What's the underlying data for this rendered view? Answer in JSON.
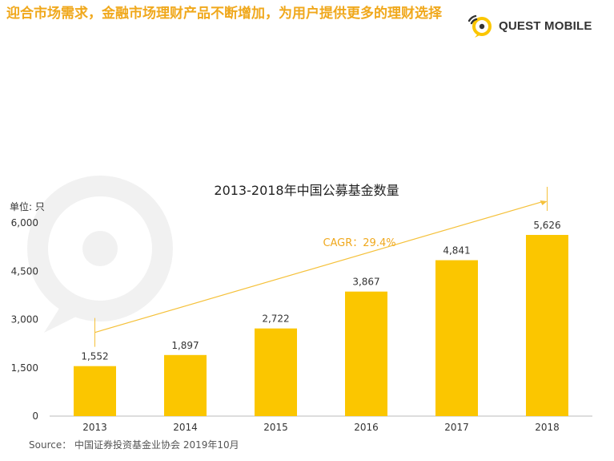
{
  "header": {
    "headline": "迎合市场需求，金融市场理财产品不断增加，为用户提供更多的理财选择",
    "logo_text": "QUEST MOBILE"
  },
  "source": "Source：  中国证券投资基金业协会 2019年10月",
  "colors": {
    "bar": "#fbc600",
    "headline": "#f0a81c",
    "cagr_line": "#f5c13a",
    "text": "#333333"
  },
  "chart_data": {
    "type": "bar",
    "title": "2013-2018年中国公募基金数量",
    "ylabel": "单位: 只",
    "xlabel": "",
    "categories": [
      "2013",
      "2014",
      "2015",
      "2016",
      "2017",
      "2018"
    ],
    "values": [
      1552,
      1897,
      2722,
      3867,
      4841,
      5626
    ],
    "value_labels": [
      "1,552",
      "1,897",
      "2,722",
      "3,867",
      "4,841",
      "5,626"
    ],
    "yticks": [
      0,
      1500,
      3000,
      4500,
      6000
    ],
    "ytick_labels": [
      "0",
      "1,500",
      "3,000",
      "4,500",
      "6,000"
    ],
    "ylim": [
      0,
      6000
    ],
    "grid": false,
    "annotation": {
      "text": "CAGR：29.4%",
      "from": "2013",
      "to": "2018"
    }
  }
}
